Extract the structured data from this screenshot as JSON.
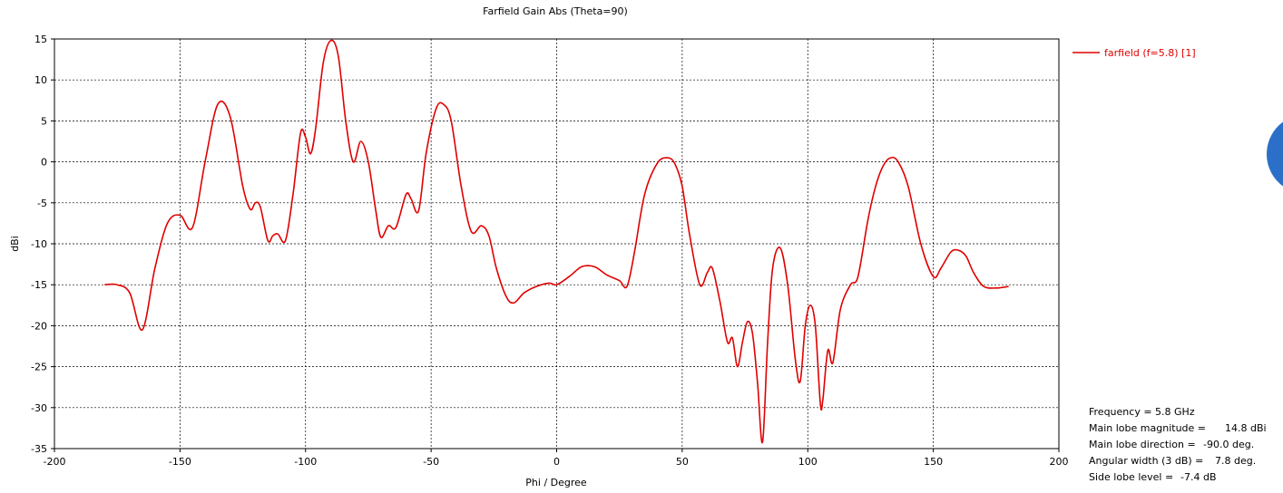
{
  "chart_data": {
    "type": "line",
    "title": "Farfield Gain Abs (Theta=90)",
    "xlabel": "Phi / Degree",
    "ylabel": "dBi",
    "xlim": [
      -200,
      200
    ],
    "ylim": [
      -35,
      15
    ],
    "x_ticks": [
      -200,
      -150,
      -100,
      -50,
      0,
      50,
      100,
      150,
      200
    ],
    "y_ticks": [
      15,
      10,
      5,
      0,
      -5,
      -10,
      -15,
      -20,
      -25,
      -30,
      -35
    ],
    "grid": true,
    "legend_position": "top-right",
    "series": [
      {
        "name": "farfield (f=5.8) [1]",
        "color": "#e00000",
        "points": [
          [
            -180,
            -15
          ],
          [
            -175,
            -15
          ],
          [
            -170,
            -16
          ],
          [
            -165,
            -20.5
          ],
          [
            -160,
            -13
          ],
          [
            -155,
            -7.5
          ],
          [
            -150,
            -6.5
          ],
          [
            -145,
            -8
          ],
          [
            -140,
            0
          ],
          [
            -135,
            7
          ],
          [
            -130,
            5.5
          ],
          [
            -125,
            -3
          ],
          [
            -122,
            -5.8
          ],
          [
            -120,
            -5
          ],
          [
            -118,
            -5.5
          ],
          [
            -115,
            -9.6
          ],
          [
            -113,
            -9
          ],
          [
            -111,
            -8.8
          ],
          [
            -108,
            -9.6
          ],
          [
            -105,
            -4
          ],
          [
            -102,
            3.5
          ],
          [
            -100,
            3
          ],
          [
            -98,
            1
          ],
          [
            -96,
            4
          ],
          [
            -93,
            12
          ],
          [
            -90,
            14.8
          ],
          [
            -87,
            13
          ],
          [
            -84,
            5
          ],
          [
            -81,
            0
          ],
          [
            -78,
            2.5
          ],
          [
            -75,
            0
          ],
          [
            -72,
            -6
          ],
          [
            -70,
            -9.2
          ],
          [
            -67,
            -7.8
          ],
          [
            -64,
            -8
          ],
          [
            -60,
            -4
          ],
          [
            -58,
            -4.5
          ],
          [
            -55,
            -6
          ],
          [
            -52,
            1
          ],
          [
            -48,
            6.5
          ],
          [
            -45,
            7
          ],
          [
            -42,
            5
          ],
          [
            -38,
            -3
          ],
          [
            -34,
            -8.5
          ],
          [
            -30,
            -7.8
          ],
          [
            -27,
            -9
          ],
          [
            -24,
            -13
          ],
          [
            -20,
            -16.5
          ],
          [
            -17,
            -17.2
          ],
          [
            -13,
            -16
          ],
          [
            -8,
            -15.2
          ],
          [
            -3,
            -14.8
          ],
          [
            0,
            -15
          ],
          [
            5,
            -14
          ],
          [
            10,
            -12.8
          ],
          [
            15,
            -12.8
          ],
          [
            20,
            -13.8
          ],
          [
            25,
            -14.5
          ],
          [
            28,
            -15.2
          ],
          [
            31,
            -11
          ],
          [
            35,
            -4
          ],
          [
            40,
            -0.2
          ],
          [
            44,
            0.5
          ],
          [
            47,
            -0.2
          ],
          [
            50,
            -3
          ],
          [
            53,
            -9
          ],
          [
            57,
            -15
          ],
          [
            60,
            -13.5
          ],
          [
            62,
            -13
          ],
          [
            65,
            -17
          ],
          [
            68,
            -22
          ],
          [
            70,
            -21.5
          ],
          [
            72,
            -25
          ],
          [
            74,
            -22
          ],
          [
            76,
            -19.5
          ],
          [
            78,
            -21
          ],
          [
            80,
            -27
          ],
          [
            82,
            -34.2
          ],
          [
            84,
            -22
          ],
          [
            86,
            -13
          ],
          [
            89,
            -10.5
          ],
          [
            92,
            -15
          ],
          [
            95,
            -24
          ],
          [
            97,
            -26.8
          ],
          [
            99,
            -20
          ],
          [
            101,
            -17.5
          ],
          [
            103,
            -20
          ],
          [
            105,
            -29.5
          ],
          [
            106,
            -29
          ],
          [
            108,
            -23
          ],
          [
            110,
            -24.5
          ],
          [
            113,
            -18
          ],
          [
            117,
            -15
          ],
          [
            120,
            -14
          ],
          [
            124,
            -7
          ],
          [
            127,
            -3
          ],
          [
            130,
            -0.5
          ],
          [
            133,
            0.5
          ],
          [
            136,
            0
          ],
          [
            140,
            -3
          ],
          [
            145,
            -10
          ],
          [
            150,
            -14
          ],
          [
            153,
            -13
          ],
          [
            157,
            -11
          ],
          [
            160,
            -10.8
          ],
          [
            163,
            -11.5
          ],
          [
            166,
            -13.5
          ],
          [
            170,
            -15.2
          ],
          [
            175,
            -15.4
          ],
          [
            178,
            -15.3
          ],
          [
            180,
            -15.2
          ]
        ]
      }
    ]
  },
  "info": {
    "frequency": "Frequency = 5.8 GHz",
    "main_lobe_magnitude_label": "Main lobe magnitude =",
    "main_lobe_magnitude_value": "14.8 dBi",
    "main_lobe_direction_label": "Main lobe direction =",
    "main_lobe_direction_value": "-90.0 deg.",
    "angular_width_label": "Angular width (3 dB) =",
    "angular_width_value": "7.8 deg.",
    "side_lobe_label": "Side lobe level =",
    "side_lobe_value": "-7.4 dB"
  },
  "accent": {
    "series_color": "#e00000",
    "circle_color": "#2b6fc9"
  }
}
